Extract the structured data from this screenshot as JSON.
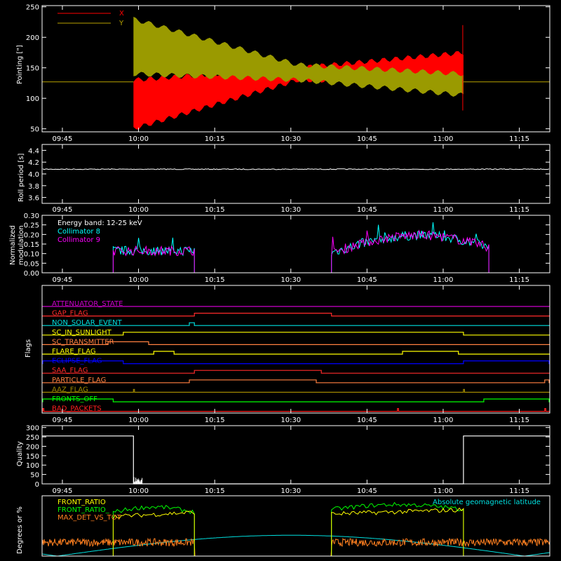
{
  "time_ticks": [
    "09:45",
    "10:00",
    "10:15",
    "10:30",
    "10:45",
    "11:00",
    "11:15"
  ],
  "chart_data": [
    {
      "id": "pointing",
      "type": "line",
      "ylabel": "Pointing [\"]",
      "ylim": [
        45,
        252
      ],
      "y_ticks": [
        "250",
        "200",
        "150",
        "100",
        "50"
      ],
      "y_tick_values": [
        250,
        200,
        150,
        100,
        50
      ],
      "legend": [
        {
          "name": "X",
          "color": "#ff0000"
        },
        {
          "name": "Y",
          "color": "#b8a200"
        }
      ],
      "series": [
        {
          "name": "X",
          "color": "#ff0000",
          "flat_value": 127,
          "active_range": [
            "09:59",
            "11:04"
          ],
          "envelope_low_start": [
            50,
            130
          ],
          "envelope_mid": [
            130,
            150
          ],
          "envelope_end": [
            125,
            175
          ]
        },
        {
          "name": "Y",
          "color": "#9a9a00",
          "flat_value": 127,
          "active_range": [
            "09:59",
            "11:04"
          ],
          "envelope_start": [
            140,
            230
          ],
          "envelope_mid": [
            130,
            155
          ],
          "envelope_end": [
            105,
            140
          ]
        }
      ]
    },
    {
      "id": "roll",
      "type": "line",
      "ylabel": "Roll period [s]",
      "ylim": [
        3.5,
        4.5
      ],
      "y_ticks": [
        "4.4",
        "4.2",
        "4.0",
        "3.8",
        "3.6"
      ],
      "y_tick_values": [
        4.4,
        4.2,
        4.0,
        3.8,
        3.6
      ],
      "series": [
        {
          "name": "",
          "color": "#ffffff",
          "value": 4.08
        }
      ]
    },
    {
      "id": "modulation",
      "type": "line",
      "ylabel": "Normalized modulation",
      "ylim": [
        0,
        0.3
      ],
      "y_ticks": [
        "0.30",
        "0.25",
        "0.20",
        "0.15",
        "0.10",
        "0.05",
        "0.00"
      ],
      "y_tick_values": [
        0.3,
        0.25,
        0.2,
        0.15,
        0.1,
        0.05,
        0.0
      ],
      "legend": [
        {
          "name": "Energy band: 12-25 keV",
          "color": "#ffffff"
        },
        {
          "name": "Collimator 8",
          "color": "#00ffff"
        },
        {
          "name": "Collimator 9",
          "color": "#ff00ff"
        }
      ],
      "intervals": [
        [
          "09:55",
          "10:11"
        ],
        [
          "10:38",
          "11:09"
        ]
      ]
    },
    {
      "id": "flags",
      "type": "line",
      "ylabel": "Flags",
      "flags": [
        {
          "name": "ATTENUATOR_STATE",
          "color": "#cc00cc",
          "on": []
        },
        {
          "name": "GAP_FLAG",
          "color": "#ff2a2a",
          "on": [
            [
              "10:11",
              "10:38"
            ]
          ]
        },
        {
          "name": "NON_SOLAR_EVENT",
          "color": "#00e0e0",
          "on": [
            [
              "10:10",
              "10:11"
            ]
          ]
        },
        {
          "name": "SC_IN_SUNLIGHT",
          "color": "#ffff00",
          "on": [
            [
              "09:57",
              "11:04"
            ]
          ]
        },
        {
          "name": "SC_TRANSMITTER",
          "color": "#ff8040",
          "on": [
            [
              "09:54",
              "10:02"
            ]
          ]
        },
        {
          "name": "FLARE_FLAG",
          "color": "#ffff00",
          "on": [
            [
              "10:03",
              "10:07"
            ],
            [
              "10:52",
              "11:03"
            ]
          ]
        },
        {
          "name": "ECLIPSE_FLAG",
          "color": "#0000ff",
          "on": [
            [
              "09:41",
              "09:57"
            ],
            [
              "11:04",
              "11:21"
            ]
          ]
        },
        {
          "name": "SAA_FLAG",
          "color": "#ff2a2a",
          "on": [
            [
              "10:11",
              "10:36"
            ]
          ]
        },
        {
          "name": "PARTICLE_FLAG",
          "color": "#ff8040",
          "on": [
            [
              "10:10",
              "10:35"
            ],
            [
              "11:20",
              "11:21"
            ]
          ]
        },
        {
          "name": "AAZ_FLAG",
          "color": "#a08800",
          "on": [
            [
              "09:59",
              "09:59"
            ],
            [
              "11:04",
              "11:04"
            ]
          ]
        },
        {
          "name": "FRONTS_OFF",
          "color": "#00ff00",
          "on": [
            [
              "09:41",
              "09:55"
            ],
            [
              "11:08",
              "11:21"
            ]
          ]
        },
        {
          "name": "BAD_PACKETS",
          "color": "#ff2020",
          "on": [
            [
              "09:41",
              "09:41"
            ],
            [
              "10:51",
              "10:51"
            ],
            [
              "11:20",
              "11:20"
            ]
          ]
        }
      ]
    },
    {
      "id": "quality",
      "type": "line",
      "ylabel": "Quality",
      "ylim": [
        0,
        310
      ],
      "y_ticks": [
        "300",
        "250",
        "200",
        "150",
        "100",
        "50",
        "0"
      ],
      "y_tick_values": [
        300,
        250,
        200,
        150,
        100,
        50,
        0
      ],
      "series": [
        {
          "name": "",
          "color": "#ffffff",
          "segments": [
            [
              "09:41",
              "09:59",
              255
            ],
            [
              "09:59",
              "11:04",
              0
            ],
            [
              "11:04",
              "11:21",
              255
            ]
          ]
        }
      ]
    },
    {
      "id": "ratios",
      "type": "line",
      "ylabel": "Degrees or %",
      "ylim": [
        0,
        110
      ],
      "legend": [
        {
          "name": "FRONT_RATIO",
          "color": "#ffff00"
        },
        {
          "name": "FRONT_RATIO_",
          "color": "#00ff00"
        },
        {
          "name": "MAX_DET_VS_TOT",
          "color": "#ff8020"
        }
      ],
      "annotation": {
        "text": "Absolute geomagnetic latitude",
        "color": "#00e0e0"
      }
    }
  ]
}
